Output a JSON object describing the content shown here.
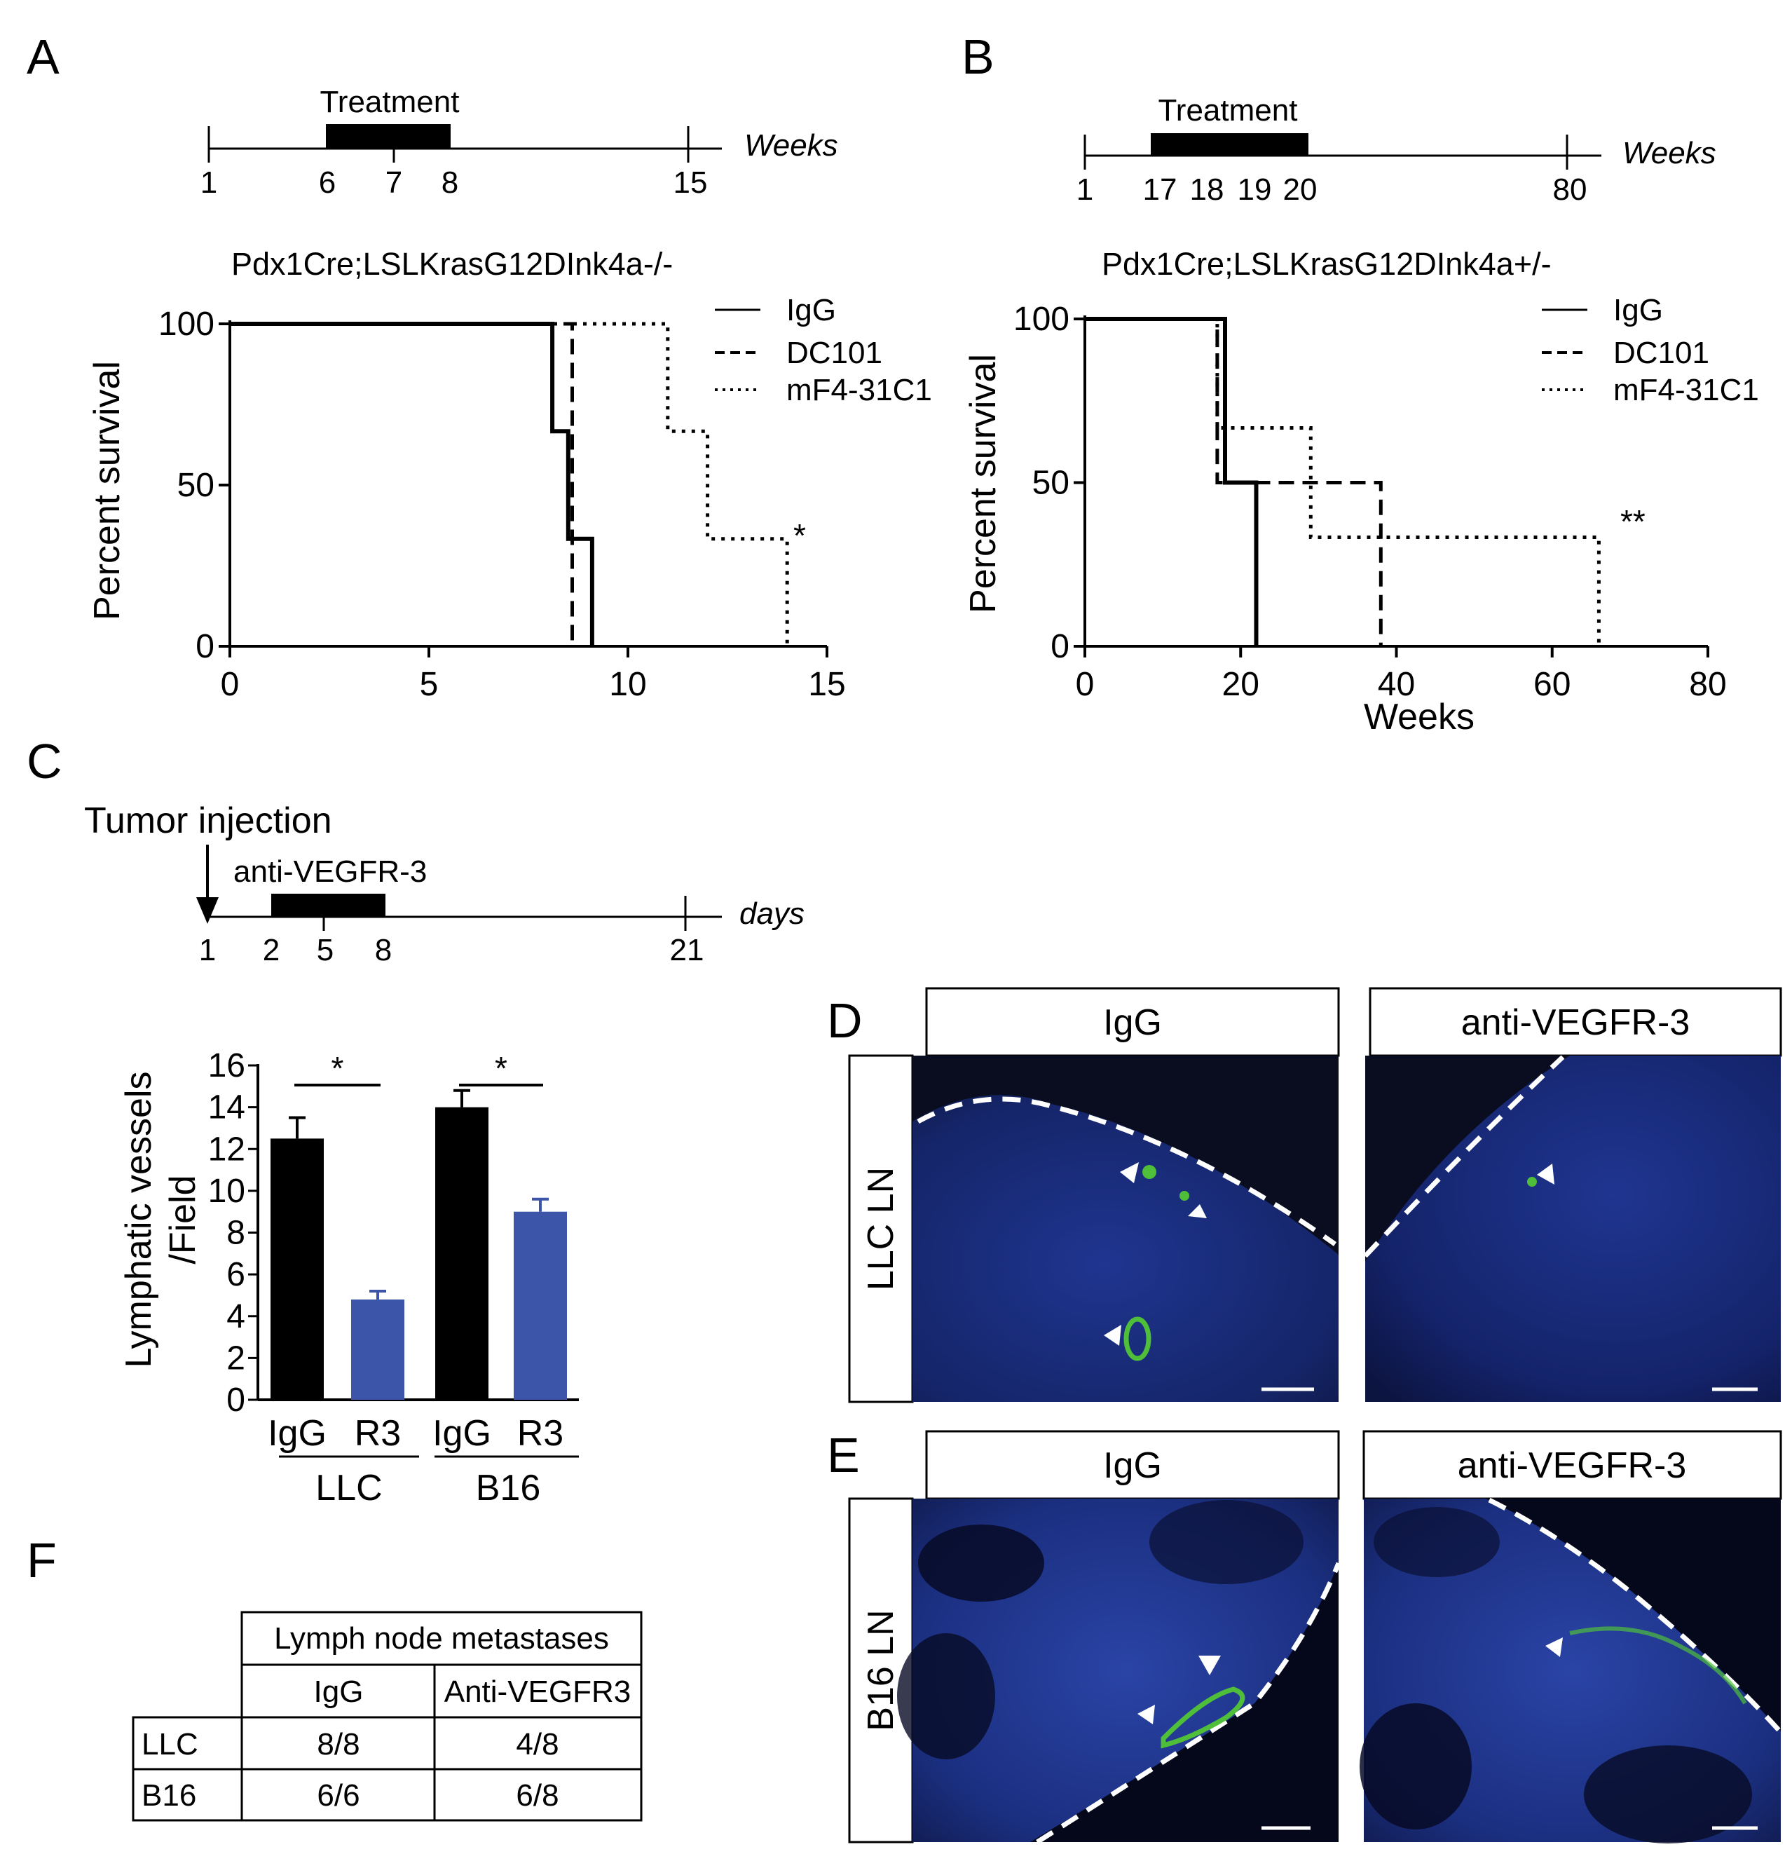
{
  "panel_letters": {
    "a": "A",
    "b": "B",
    "c": "C",
    "d": "D",
    "e": "E",
    "f": "F"
  },
  "colors": {
    "igg_bar": "#000000",
    "r3_bar": "#3c55a8",
    "micrograph_bg": "#121c55",
    "vessel_stain": "#4fbf3a"
  },
  "timelines": {
    "A": {
      "treatment": "Treatment",
      "unit": "Weeks",
      "ticks": [
        "1",
        "6",
        "7",
        "8",
        "15"
      ]
    },
    "B": {
      "treatment": "Treatment",
      "unit": "Weeks",
      "ticks": [
        "1",
        "17",
        "18",
        "19",
        "20",
        "80"
      ]
    },
    "C": {
      "injection": "Tumor injection",
      "treatment": "anti-VEGFR-3",
      "unit": "days",
      "ticks": [
        "1",
        "2",
        "5",
        "8",
        "21"
      ]
    }
  },
  "chart_data": [
    {
      "panel": "A",
      "type": "line",
      "title": "Pdx1Cre;LSLKrasG12DInk4a-/-",
      "xlabel": "",
      "ylabel": "Percent survival",
      "xlim": [
        0,
        15
      ],
      "ylim": [
        0,
        100
      ],
      "xticks": [
        "0",
        "5",
        "10",
        "15"
      ],
      "yticks": [
        "0",
        "50",
        "100"
      ],
      "legend_position": "top-right",
      "annotation": "*",
      "series": [
        {
          "name": "IgG",
          "style": "solid",
          "points": [
            [
              0,
              100
            ],
            [
              8.1,
              100
            ],
            [
              8.1,
              66.7
            ],
            [
              8.5,
              66.7
            ],
            [
              8.5,
              33.3
            ],
            [
              9.1,
              33.3
            ],
            [
              9.1,
              0
            ]
          ]
        },
        {
          "name": "DC101",
          "style": "dashed",
          "points": [
            [
              0,
              100
            ],
            [
              8.6,
              100
            ],
            [
              8.6,
              0
            ]
          ]
        },
        {
          "name": "mF4-31C1",
          "style": "dotted",
          "points": [
            [
              0,
              100
            ],
            [
              11,
              100
            ],
            [
              11,
              66.7
            ],
            [
              12,
              66.7
            ],
            [
              12,
              33.3
            ],
            [
              14,
              33.3
            ],
            [
              14,
              0
            ]
          ]
        }
      ]
    },
    {
      "panel": "B",
      "type": "line",
      "title": "Pdx1Cre;LSLKrasG12DInk4a+/-",
      "xlabel": "Weeks",
      "ylabel": "Percent survival",
      "xlim": [
        0,
        80
      ],
      "ylim": [
        0,
        100
      ],
      "xticks": [
        "0",
        "20",
        "40",
        "60",
        "80"
      ],
      "yticks": [
        "0",
        "50",
        "100"
      ],
      "legend_position": "top-right",
      "annotation": "**",
      "series": [
        {
          "name": "IgG",
          "style": "solid",
          "points": [
            [
              0,
              100
            ],
            [
              18,
              100
            ],
            [
              18,
              50
            ],
            [
              22,
              50
            ],
            [
              22,
              0
            ]
          ]
        },
        {
          "name": "DC101",
          "style": "dashed",
          "points": [
            [
              0,
              100
            ],
            [
              17,
              100
            ],
            [
              17,
              50
            ],
            [
              38,
              50
            ],
            [
              38,
              0
            ]
          ]
        },
        {
          "name": "mF4-31C1",
          "style": "dotted",
          "points": [
            [
              0,
              100
            ],
            [
              17,
              100
            ],
            [
              17,
              66.7
            ],
            [
              29,
              66.7
            ],
            [
              29,
              33.3
            ],
            [
              66,
              33.3
            ],
            [
              66,
              0
            ]
          ]
        }
      ]
    },
    {
      "panel": "C",
      "type": "bar",
      "ylabel_line1": "Lymphatic vessels",
      "ylabel_line2": "/Field",
      "ylim": [
        0,
        16
      ],
      "yticks": [
        "0",
        "2",
        "4",
        "6",
        "8",
        "10",
        "12",
        "14",
        "16"
      ],
      "categories": [
        "IgG",
        "R3",
        "IgG",
        "R3"
      ],
      "groups": [
        "LLC",
        "B16"
      ],
      "values": [
        12.5,
        4.8,
        14.0,
        9.0
      ],
      "errors": [
        1.0,
        0.4,
        0.8,
        0.6
      ],
      "significance": [
        "*",
        "*"
      ]
    }
  ],
  "micrographs": {
    "col_headers": [
      "IgG",
      "anti-VEGFR-3",
      "IgG",
      "anti-VEGFR-3"
    ],
    "row_labels": [
      "LLC LN",
      "B16 LN"
    ]
  },
  "table_f": {
    "header": "Lymph node metastases",
    "columns": [
      "IgG",
      "Anti-VEGFR3"
    ],
    "rows": [
      {
        "label": "LLC",
        "igg": "8/8",
        "anti": "4/8"
      },
      {
        "label": "B16",
        "igg": "6/6",
        "anti": "6/8"
      }
    ]
  }
}
